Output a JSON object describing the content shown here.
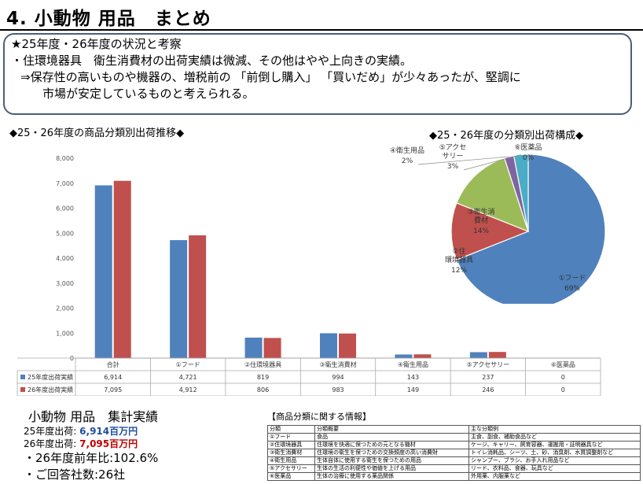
{
  "title": "4. 小動物 用品　まとめ",
  "summary": {
    "line1": "★25年度・26年度の状況と考察",
    "line2": "・住環境器具　衛生消費材の出荷実績は微減、その他はやや上向きの実績。",
    "line3": "⇒保存性の高いものや機器の、増税前の 「前倒し購入」 「買いだめ」が少々あったが、堅調に",
    "line4": "市場が安定しているものと考えられる。"
  },
  "bar_section_label": "◆25・26年度の商品分類別出荷推移◆",
  "pie_section_label": "◆25・26年度の分類別出荷構成◆",
  "colors": {
    "s25": "#4f81bd",
    "s26": "#c0504d",
    "pie_blue": "#4f81bd",
    "pie_red": "#c0504d",
    "pie_green": "#9bbb59",
    "pie_purple": "#8064a2",
    "pie_cyan": "#4bacc6",
    "pie_orange": "#f79646"
  },
  "chart_data": [
    {
      "type": "bar",
      "categories": [
        "合計",
        "①フード",
        "②住環境器具",
        "③衛生消費材",
        "④衛生用品",
        "⑤アクセサリー",
        "⑥医薬品"
      ],
      "series": [
        {
          "name": "25年度出荷実績",
          "values": [
            6914,
            4721,
            819,
            994,
            143,
            237,
            0
          ]
        },
        {
          "name": "26年度出荷実績",
          "values": [
            7095,
            4912,
            806,
            983,
            149,
            246,
            0
          ]
        }
      ],
      "table_values": [
        [
          "6,914",
          "4,721",
          "819",
          "994",
          "143",
          "237",
          "0"
        ],
        [
          "7,095",
          "4,912",
          "806",
          "983",
          "149",
          "246",
          "0"
        ]
      ],
      "yticks": [
        "0",
        "1,000",
        "2,000",
        "3,000",
        "4,000",
        "5,000",
        "6,000",
        "7,000",
        "8,000"
      ],
      "ylim": [
        0,
        8000
      ],
      "grid": false,
      "legend": "data-table"
    },
    {
      "type": "pie",
      "slices": [
        {
          "label": "①フード",
          "pct": "69%",
          "value": 69
        },
        {
          "label": "②住環境器具",
          "pct": "12%",
          "value": 12
        },
        {
          "label": "③衛生消費材",
          "pct": "14%",
          "value": 14
        },
        {
          "label": "④衛生用品",
          "pct": "2%",
          "value": 2
        },
        {
          "label": "⑤アクセサリー",
          "pct": "3%",
          "value": 3
        },
        {
          "label": "⑥医薬品",
          "pct": "0%",
          "value": 0
        }
      ]
    }
  ],
  "totals": {
    "title": "小動物 用品　集計実績",
    "row25_label": "25年度出荷:",
    "row25_value": "6,914百万円",
    "row26_label": "26年度出荷:",
    "row26_value": "7,095百万円",
    "ratio": "・26年度前年比:102.6%",
    "companies": "・ご回答社数:26社"
  },
  "info": {
    "title": "【商品分類に関する情報】",
    "rows": [
      [
        "分類",
        "分類概要",
        "主な分類例"
      ],
      [
        "①フード",
        "食品",
        "主食、副食、補助食品など"
      ],
      [
        "②住環境器具",
        "住環境を快適に保つための元となる機材",
        "ケージ、キャリー、飼育容器、運搬用・証明器具など"
      ],
      [
        "③衛生消費材",
        "住環境の衛生を保つための交換頻度の高い消費財",
        "トイレ消耗品、シーツ、土、砂、消臭剤、水質調整剤など"
      ],
      [
        "④衛生用品",
        "生体自体に使用する衛生を保つための用品",
        "シャンプー、ブラシ、お手入れ用品など"
      ],
      [
        "⑤アクセサリー",
        "生体の生活の利便性や価値を上げる用品",
        "リード、衣料品、食器、玩具など"
      ],
      [
        "⑥医薬品",
        "生体の治療に使用する薬品関係",
        "外用薬、内服薬など"
      ]
    ]
  }
}
